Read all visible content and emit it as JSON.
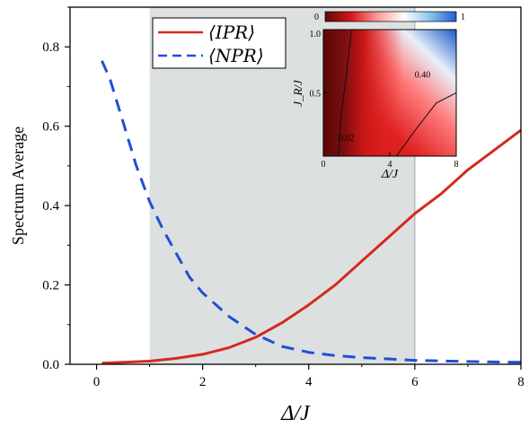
{
  "chart_data": [
    {
      "type": "line",
      "xlabel": "Δ/J",
      "ylabel": "Spectrum Average",
      "xlim": [
        -0.5,
        8.0
      ],
      "ylim": [
        0.0,
        0.9
      ],
      "xticks": [
        "0",
        "2",
        "4",
        "6",
        "8"
      ],
      "yticks": [
        "0.0",
        "0.2",
        "0.4",
        "0.6",
        "0.8"
      ],
      "grid": false,
      "legend_position": "top-left",
      "shaded_region": {
        "x": [
          1.0,
          6.0
        ],
        "color": "#dde0e0"
      },
      "series": [
        {
          "name": "⟨IPR⟩",
          "color": "#d42a1c",
          "style": "solid",
          "x": [
            0.1,
            0.5,
            1.0,
            1.5,
            2.0,
            2.5,
            3.0,
            3.5,
            4.0,
            4.5,
            5.0,
            5.5,
            6.0,
            6.5,
            7.0,
            7.5,
            8.0
          ],
          "y": [
            0.003,
            0.005,
            0.008,
            0.015,
            0.025,
            0.042,
            0.068,
            0.105,
            0.15,
            0.2,
            0.26,
            0.32,
            0.38,
            0.43,
            0.49,
            0.54,
            0.59
          ]
        },
        {
          "name": "⟨NPR⟩",
          "color": "#1f4fd8",
          "style": "dashed",
          "x": [
            0.1,
            0.25,
            0.5,
            0.75,
            1.0,
            1.25,
            1.5,
            1.75,
            2.0,
            2.5,
            3.0,
            3.5,
            4.0,
            4.5,
            5.0,
            6.0,
            7.0,
            8.0
          ],
          "y": [
            0.765,
            0.72,
            0.61,
            0.5,
            0.41,
            0.34,
            0.28,
            0.22,
            0.18,
            0.12,
            0.075,
            0.045,
            0.03,
            0.022,
            0.017,
            0.01,
            0.007,
            0.005
          ]
        }
      ]
    },
    {
      "type": "heatmap",
      "xlabel": "Δ/J",
      "ylabel": "J_R/J",
      "xlim": [
        0,
        8
      ],
      "ylim": [
        0.0,
        1.0
      ],
      "xticks": [
        "0",
        "4",
        "8"
      ],
      "yticks": [
        "0.5",
        "1.0"
      ],
      "colorbar": {
        "min_label": "0",
        "max_label": "1",
        "colors": [
          "#5a0a0a",
          "#d81818",
          "#ff9a9a",
          "#ffffff",
          "#8ac4ee",
          "#1f5fd0"
        ]
      },
      "contours": [
        {
          "label": "0.02",
          "points": [
            [
              0.9,
              0.0
            ],
            [
              1.05,
              0.3
            ],
            [
              1.35,
              0.6
            ],
            [
              1.7,
              1.0
            ]
          ]
        },
        {
          "label": "0.40",
          "points": [
            [
              4.4,
              0.0
            ],
            [
              5.5,
              0.2
            ],
            [
              6.8,
              0.42
            ],
            [
              8.0,
              0.5
            ]
          ]
        }
      ]
    }
  ]
}
